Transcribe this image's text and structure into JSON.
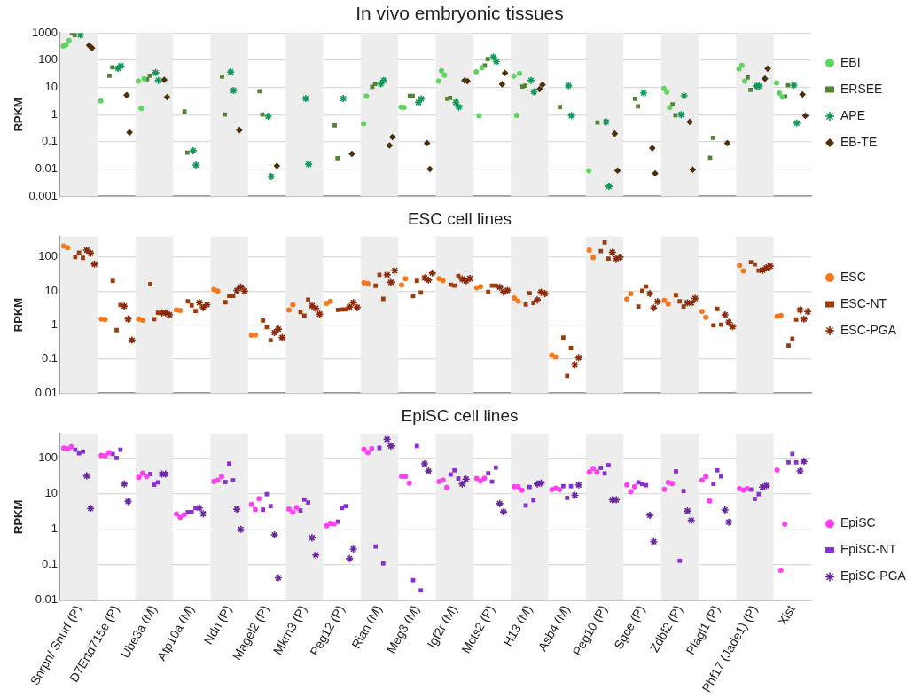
{
  "chart_data": [
    {
      "type": "scatter",
      "title": "In vivo embryonic tissues",
      "ylabel": "RPKM",
      "log": "y",
      "ylim": [
        0.001,
        1000
      ],
      "yticks": [
        0.001,
        0.01,
        0.1,
        1,
        10,
        100,
        1000
      ],
      "grid": "y",
      "legend": "right",
      "tick_labels": "y",
      "categories": [
        "Snrpn/ Snurf (P)",
        "D7Ertd715e (P)",
        "Ube3a (M)",
        "Atp10a (M)",
        "Ndn (P)",
        "Magel2 (P)",
        "Mkrn3 (P)",
        "Peg12 (P)",
        "Rian (M)",
        "Meg3 (M)",
        "Igf2r (M)",
        "Mcts2 (P)",
        "H13 (M)",
        "Asb4 (M)",
        "Peg10 (P)",
        "Sgce (P)",
        "Zdbf2 (P)",
        "Plagl1 (P)",
        "Phf17 (Jade1) (P)",
        "Xist"
      ],
      "bands": [
        {
          "axis": "x",
          "from": "Snrpn/ Snurf (P)",
          "to": "Snrpn/ Snurf (P)",
          "color": "#ededed"
        },
        {
          "axis": "x",
          "from": "Ube3a (M)",
          "to": "Ube3a (M)",
          "color": "#ededed"
        },
        {
          "axis": "x",
          "from": "Ndn (P)",
          "to": "Ndn (P)",
          "color": "#ededed"
        },
        {
          "axis": "x",
          "from": "Mkrn3 (P)",
          "to": "Mkrn3 (P)",
          "color": "#ededed"
        },
        {
          "axis": "x",
          "from": "Rian (M)",
          "to": "Rian (M)",
          "color": "#ededed"
        },
        {
          "axis": "x",
          "from": "Igf2r (M)",
          "to": "Igf2r (M)",
          "color": "#ededed"
        },
        {
          "axis": "x",
          "from": "H13 (M)",
          "to": "H13 (M)",
          "color": "#ededed"
        },
        {
          "axis": "x",
          "from": "Peg10 (P)",
          "to": "Peg10 (P)",
          "color": "#ededed"
        },
        {
          "axis": "x",
          "from": "Zdbf2 (P)",
          "to": "Zdbf2 (P)",
          "color": "#ededed"
        },
        {
          "axis": "x",
          "from": "Phf17 (Jade1) (P)",
          "to": "Phf17 (Jade1) (P)",
          "color": "#ededed"
        }
      ],
      "series": [
        {
          "name": "EBI",
          "color": "#5fd35f",
          "marker": "circle",
          "x": [
            "Snrpn/ Snurf (P)",
            "Snrpn/ Snurf (P)",
            "Snrpn/ Snurf (P)",
            "D7Ertd715e (P)",
            "Ube3a (M)",
            "Ube3a (M)",
            "Ube3a (M)",
            "Rian (M)",
            "Rian (M)",
            "Meg3 (M)",
            "Meg3 (M)",
            "Igf2r (M)",
            "Igf2r (M)",
            "Igf2r (M)",
            "Mcts2 (P)",
            "Mcts2 (P)",
            "Mcts2 (P)",
            "H13 (M)",
            "H13 (M)",
            "H13 (M)",
            "Peg10 (P)",
            "Zdbf2 (P)",
            "Zdbf2 (P)",
            "Zdbf2 (P)",
            "Phf17 (Jade1) (P)",
            "Phf17 (Jade1) (P)",
            "Phf17 (Jade1) (P)",
            "Xist",
            "Xist",
            "Xist"
          ],
          "values": [
            330,
            370,
            530,
            3.2,
            17,
            1.7,
            21,
            0.46,
            4.7,
            1.9,
            1.8,
            17,
            41,
            28,
            37,
            0.9,
            53,
            26,
            0.95,
            33,
            0.0086,
            9.2,
            6.7,
            1.8,
            48,
            64,
            17,
            14.5,
            6.2,
            4.4
          ]
        },
        {
          "name": "ERSEE",
          "color": "#548235",
          "marker": "square",
          "x": [
            "Snrpn/ Snurf (P)",
            "Snrpn/ Snurf (P)",
            "D7Ertd715e (P)",
            "D7Ertd715e (P)",
            "Ube3a (M)",
            "Ube3a (M)",
            "Atp10a (M)",
            "Atp10a (M)",
            "Ndn (P)",
            "Ndn (P)",
            "Magel2 (P)",
            "Magel2 (P)",
            "Peg12 (P)",
            "Peg12 (P)",
            "Rian (M)",
            "Rian (M)",
            "Meg3 (M)",
            "Meg3 (M)",
            "Igf2r (M)",
            "Igf2r (M)",
            "Mcts2 (P)",
            "Mcts2 (P)",
            "H13 (M)",
            "H13 (M)",
            "Asb4 (M)",
            "Peg10 (P)",
            "Sgce (P)",
            "Sgce (P)",
            "Zdbf2 (P)",
            "Zdbf2 (P)",
            "Plagl1 (P)",
            "Plagl1 (P)",
            "Phf17 (Jade1) (P)",
            "Phf17 (Jade1) (P)",
            "Xist",
            "Xist"
          ],
          "values": [
            1000,
            830,
            27,
            55,
            20,
            27,
            1.3,
            0.04,
            25,
            1.0,
            7.2,
            1.0,
            0.4,
            0.025,
            10.5,
            13.5,
            4.9,
            4.9,
            3.8,
            4.1,
            64,
            110,
            10.7,
            11.5,
            1.9,
            0.51,
            3.8,
            2.0,
            2.4,
            0.95,
            0.026,
            0.14,
            23,
            8.1,
            4.6,
            12
          ]
        },
        {
          "name": "APE",
          "color": "#109a5a",
          "marker": "cross",
          "x": [
            "Snrpn/ Snurf (P)",
            "D7Ertd715e (P)",
            "D7Ertd715e (P)",
            "Ube3a (M)",
            "Ube3a (M)",
            "Atp10a (M)",
            "Atp10a (M)",
            "Ndn (P)",
            "Ndn (P)",
            "Magel2 (P)",
            "Magel2 (P)",
            "Mkrn3 (P)",
            "Mkrn3 (P)",
            "Peg12 (P)",
            "Rian (M)",
            "Rian (M)",
            "Meg3 (M)",
            "Meg3 (M)",
            "Igf2r (M)",
            "Igf2r (M)",
            "Mcts2 (P)",
            "Mcts2 (P)",
            "H13 (M)",
            "H13 (M)",
            "Asb4 (M)",
            "Asb4 (M)",
            "Peg10 (P)",
            "Peg10 (P)",
            "Sgce (P)",
            "Zdbf2 (P)",
            "Zdbf2 (P)",
            "Phf17 (Jade1) (P)",
            "Phf17 (Jade1) (P)",
            "Xist",
            "Xist"
          ],
          "values": [
            850,
            50,
            62,
            35,
            18,
            0.047,
            0.014,
            37,
            7.7,
            0.87,
            0.0053,
            3.9,
            0.015,
            3.9,
            13.5,
            18,
            2.8,
            3.8,
            2.8,
            1.9,
            130,
            88,
            18,
            6.9,
            11.5,
            0.93,
            0.54,
            0.0023,
            6.3,
            1.0,
            4.9,
            11.2,
            11.2,
            12,
            0.49
          ]
        },
        {
          "name": "EB-TE",
          "color": "#4d2e0b",
          "marker": "diamond",
          "x": [
            "Snrpn/ Snurf (P)",
            "Snrpn/ Snurf (P)",
            "D7Ertd715e (P)",
            "D7Ertd715e (P)",
            "Ube3a (M)",
            "Ube3a (M)",
            "Ndn (P)",
            "Magel2 (P)",
            "Peg12 (P)",
            "Rian (M)",
            "Rian (M)",
            "Meg3 (M)",
            "Meg3 (M)",
            "Igf2r (M)",
            "Igf2r (M)",
            "Mcts2 (P)",
            "Mcts2 (P)",
            "H13 (M)",
            "H13 (M)",
            "Peg10 (P)",
            "Peg10 (P)",
            "Sgce (P)",
            "Sgce (P)",
            "Zdbf2 (P)",
            "Zdbf2 (P)",
            "Plagl1 (P)",
            "Phf17 (Jade1) (P)",
            "Phf17 (Jade1) (P)",
            "Xist",
            "Xist"
          ],
          "values": [
            350,
            280,
            5.2,
            0.22,
            19,
            4.4,
            0.27,
            0.013,
            0.036,
            0.073,
            0.15,
            0.089,
            0.01,
            18,
            17,
            13,
            34,
            8.7,
            12.5,
            0.2,
            0.0088,
            0.058,
            0.0069,
            0.54,
            0.0095,
            0.089,
            21,
            49,
            5.5,
            0.91
          ]
        }
      ]
    },
    {
      "type": "scatter",
      "title": "ESC cell lines",
      "ylabel": "RPKM",
      "log": "y",
      "ylim": [
        0.01,
        400
      ],
      "yticks": [
        0.01,
        0.1,
        1,
        10,
        100
      ],
      "grid": "y",
      "legend": "right",
      "tick_labels": "y",
      "categories": [
        "Snrpn/ Snurf (P)",
        "D7Ertd715e (P)",
        "Ube3a (M)",
        "Atp10a (M)",
        "Ndn (P)",
        "Magel2 (P)",
        "Mkrn3 (P)",
        "Peg12 (P)",
        "Rian (M)",
        "Meg3 (M)",
        "Igf2r (M)",
        "Mcts2 (P)",
        "H13 (M)",
        "Asb4 (M)",
        "Peg10 (P)",
        "Sgce (P)",
        "Zdbf2 (P)",
        "Plagl1 (P)",
        "Phf17 (Jade1) (P)",
        "Xist"
      ],
      "bands": [
        {
          "axis": "x",
          "from": "Snrpn/ Snurf (P)",
          "to": "Snrpn/ Snurf (P)",
          "color": "#ededed"
        },
        {
          "axis": "x",
          "from": "Ube3a (M)",
          "to": "Ube3a (M)",
          "color": "#ededed"
        },
        {
          "axis": "x",
          "from": "Ndn (P)",
          "to": "Ndn (P)",
          "color": "#ededed"
        },
        {
          "axis": "x",
          "from": "Mkrn3 (P)",
          "to": "Mkrn3 (P)",
          "color": "#ededed"
        },
        {
          "axis": "x",
          "from": "Rian (M)",
          "to": "Rian (M)",
          "color": "#ededed"
        },
        {
          "axis": "x",
          "from": "Igf2r (M)",
          "to": "Igf2r (M)",
          "color": "#ededed"
        },
        {
          "axis": "x",
          "from": "H13 (M)",
          "to": "H13 (M)",
          "color": "#ededed"
        },
        {
          "axis": "x",
          "from": "Peg10 (P)",
          "to": "Peg10 (P)",
          "color": "#ededed"
        },
        {
          "axis": "x",
          "from": "Zdbf2 (P)",
          "to": "Zdbf2 (P)",
          "color": "#ededed"
        },
        {
          "axis": "x",
          "from": "Phf17 (Jade1) (P)",
          "to": "Phf17 (Jade1) (P)",
          "color": "#ededed"
        }
      ],
      "series": [
        {
          "name": "ESC",
          "color": "#f6781c",
          "marker": "circle",
          "x": [
            "Snrpn/ Snurf (P)",
            "Snrpn/ Snurf (P)",
            "D7Ertd715e (P)",
            "D7Ertd715e (P)",
            "Ube3a (M)",
            "Ube3a (M)",
            "Atp10a (M)",
            "Atp10a (M)",
            "Ndn (P)",
            "Ndn (P)",
            "Magel2 (P)",
            "Magel2 (P)",
            "Mkrn3 (P)",
            "Mkrn3 (P)",
            "Peg12 (P)",
            "Peg12 (P)",
            "Rian (M)",
            "Rian (M)",
            "Meg3 (M)",
            "Meg3 (M)",
            "Igf2r (M)",
            "Igf2r (M)",
            "Mcts2 (P)",
            "Mcts2 (P)",
            "H13 (M)",
            "H13 (M)",
            "Asb4 (M)",
            "Asb4 (M)",
            "Peg10 (P)",
            "Peg10 (P)",
            "Sgce (P)",
            "Sgce (P)",
            "Zdbf2 (P)",
            "Zdbf2 (P)",
            "Plagl1 (P)",
            "Plagl1 (P)",
            "Phf17 (Jade1) (P)",
            "Phf17 (Jade1) (P)",
            "Xist",
            "Xist"
          ],
          "values": [
            210,
            190,
            1.5,
            1.45,
            1.5,
            1.4,
            2.8,
            2.7,
            11,
            10,
            0.5,
            0.51,
            2.8,
            4.0,
            4.4,
            5.0,
            17.5,
            16.7,
            15,
            23,
            23,
            20.6,
            12.5,
            13.5,
            6.3,
            5.1,
            0.13,
            0.115,
            160,
            96,
            5.8,
            8.3,
            5.3,
            4.2,
            2.5,
            1.7,
            57,
            39,
            1.8,
            1.9
          ]
        },
        {
          "name": "ESC-NT",
          "color": "#9c3c0c",
          "marker": "square",
          "x": [
            "Snrpn/ Snurf (P)",
            "Snrpn/ Snurf (P)",
            "Snrpn/ Snurf (P)",
            "D7Ertd715e (P)",
            "D7Ertd715e (P)",
            "D7Ertd715e (P)",
            "Ube3a (M)",
            "Ube3a (M)",
            "Ube3a (M)",
            "Atp10a (M)",
            "Atp10a (M)",
            "Atp10a (M)",
            "Ndn (P)",
            "Ndn (P)",
            "Ndn (P)",
            "Magel2 (P)",
            "Magel2 (P)",
            "Magel2 (P)",
            "Mkrn3 (P)",
            "Mkrn3 (P)",
            "Mkrn3 (P)",
            "Peg12 (P)",
            "Peg12 (P)",
            "Peg12 (P)",
            "Rian (M)",
            "Rian (M)",
            "Rian (M)",
            "Meg3 (M)",
            "Meg3 (M)",
            "Meg3 (M)",
            "Igf2r (M)",
            "Igf2r (M)",
            "Igf2r (M)",
            "Mcts2 (P)",
            "Mcts2 (P)",
            "Mcts2 (P)",
            "H13 (M)",
            "H13 (M)",
            "H13 (M)",
            "Asb4 (M)",
            "Asb4 (M)",
            "Asb4 (M)",
            "Peg10 (P)",
            "Peg10 (P)",
            "Peg10 (P)",
            "Sgce (P)",
            "Sgce (P)",
            "Sgce (P)",
            "Zdbf2 (P)",
            "Zdbf2 (P)",
            "Zdbf2 (P)",
            "Plagl1 (P)",
            "Plagl1 (P)",
            "Plagl1 (P)",
            "Phf17 (Jade1) (P)",
            "Phf17 (Jade1) (P)",
            "Phf17 (Jade1) (P)",
            "Xist",
            "Xist",
            "Xist"
          ],
          "values": [
            100,
            134,
            95,
            20,
            0.71,
            3.9,
            16,
            1.5,
            2.3,
            5.0,
            3.8,
            2.6,
            4.7,
            7.2,
            7.2,
            1.37,
            0.87,
            0.36,
            2.4,
            1.9,
            5.6,
            2.8,
            2.9,
            2.9,
            14.3,
            30,
            5.9,
            7.1,
            20,
            9,
            15.3,
            14.4,
            28,
            9.5,
            14.4,
            14.4,
            4.0,
            8.6,
            4.5,
            0.43,
            0.032,
            0.21,
            150,
            270,
            90,
            3.5,
            10.2,
            13.6,
            7.6,
            5.0,
            3.5,
            0.98,
            3.0,
            1.03,
            71,
            61,
            40,
            0.25,
            0.4,
            1.46
          ]
        },
        {
          "name": "ESC-PGA",
          "color": "#8b2a0a",
          "marker": "cross",
          "x": [
            "Snrpn/ Snurf (P)",
            "Snrpn/ Snurf (P)",
            "Snrpn/ Snurf (P)",
            "D7Ertd715e (P)",
            "D7Ertd715e (P)",
            "D7Ertd715e (P)",
            "Ube3a (M)",
            "Ube3a (M)",
            "Ube3a (M)",
            "Atp10a (M)",
            "Atp10a (M)",
            "Atp10a (M)",
            "Ndn (P)",
            "Ndn (P)",
            "Ndn (P)",
            "Magel2 (P)",
            "Magel2 (P)",
            "Magel2 (P)",
            "Mkrn3 (P)",
            "Mkrn3 (P)",
            "Mkrn3 (P)",
            "Peg12 (P)",
            "Peg12 (P)",
            "Peg12 (P)",
            "Rian (M)",
            "Rian (M)",
            "Rian (M)",
            "Meg3 (M)",
            "Meg3 (M)",
            "Meg3 (M)",
            "Igf2r (M)",
            "Igf2r (M)",
            "Igf2r (M)",
            "Mcts2 (P)",
            "Mcts2 (P)",
            "Mcts2 (P)",
            "H13 (M)",
            "H13 (M)",
            "H13 (M)",
            "Asb4 (M)",
            "Asb4 (M)",
            "Peg10 (P)",
            "Peg10 (P)",
            "Peg10 (P)",
            "Sgce (P)",
            "Sgce (P)",
            "Sgce (P)",
            "Zdbf2 (P)",
            "Zdbf2 (P)",
            "Zdbf2 (P)",
            "Plagl1 (P)",
            "Plagl1 (P)",
            "Plagl1 (P)",
            "Phf17 (Jade1) (P)",
            "Phf17 (Jade1) (P)",
            "Phf17 (Jade1) (P)",
            "Xist",
            "Xist",
            "Xist"
          ],
          "values": [
            160,
            130,
            62,
            3.6,
            1.5,
            0.36,
            2.3,
            2.3,
            2.0,
            4.6,
            3.3,
            4.0,
            10.4,
            13,
            10,
            0.6,
            0.76,
            0.43,
            3.7,
            3.1,
            2.1,
            3.4,
            4.6,
            3.3,
            30,
            18,
            40,
            24.5,
            21,
            34,
            22.6,
            20,
            23.5,
            13,
            9.3,
            10.5,
            5.5,
            9.3,
            8.4,
            0.068,
            0.11,
            138,
            90,
            100,
            8.4,
            3.2,
            4.9,
            4.5,
            4.5,
            6.1,
            2.0,
            1.2,
            0.9,
            41,
            48,
            54,
            2.8,
            1.5,
            2.5
          ]
        }
      ]
    },
    {
      "type": "scatter",
      "title": "EpiSC cell lines",
      "ylabel": "RPKM",
      "log": "y",
      "ylim": [
        0.01,
        500
      ],
      "yticks": [
        0.01,
        0.1,
        1,
        10,
        100
      ],
      "grid": "y",
      "legend": "right",
      "categories": [
        "Snrpn/ Snurf (P)",
        "D7Ertd715e (P)",
        "Ube3a (M)",
        "Atp10a (M)",
        "Ndn (P)",
        "Magel2 (P)",
        "Mkrn3 (P)",
        "Peg12 (P)",
        "Rian (M)",
        "Meg3 (M)",
        "Igf2r (M)",
        "Mcts2 (P)",
        "H13 (M)",
        "Asb4 (M)",
        "Peg10 (P)",
        "Sgce (P)",
        "Zdbf2 (P)",
        "Plagl1 (P)",
        "Phf17 (Jade1) (P)",
        "Xist"
      ],
      "bands": [
        {
          "axis": "x",
          "from": "Snrpn/ Snurf (P)",
          "to": "Snrpn/ Snurf (P)",
          "color": "#ededed"
        },
        {
          "axis": "x",
          "from": "Ube3a (M)",
          "to": "Ube3a (M)",
          "color": "#ededed"
        },
        {
          "axis": "x",
          "from": "Ndn (P)",
          "to": "Ndn (P)",
          "color": "#ededed"
        },
        {
          "axis": "x",
          "from": "Mkrn3 (P)",
          "to": "Mkrn3 (P)",
          "color": "#ededed"
        },
        {
          "axis": "x",
          "from": "Rian (M)",
          "to": "Rian (M)",
          "color": "#ededed"
        },
        {
          "axis": "x",
          "from": "Igf2r (M)",
          "to": "Igf2r (M)",
          "color": "#ededed"
        },
        {
          "axis": "x",
          "from": "H13 (M)",
          "to": "H13 (M)",
          "color": "#ededed"
        },
        {
          "axis": "x",
          "from": "Peg10 (P)",
          "to": "Peg10 (P)",
          "color": "#ededed"
        },
        {
          "axis": "x",
          "from": "Zdbf2 (P)",
          "to": "Zdbf2 (P)",
          "color": "#ededed"
        },
        {
          "axis": "x",
          "from": "Phf17 (Jade1) (P)",
          "to": "Phf17 (Jade1) (P)",
          "color": "#ededed"
        }
      ],
      "series": [
        {
          "name": "EpiSC",
          "color": "#ff40f0",
          "marker": "circle",
          "x": [
            "Snrpn/ Snurf (P)",
            "Snrpn/ Snurf (P)",
            "Snrpn/ Snurf (P)",
            "D7Ertd715e (P)",
            "D7Ertd715e (P)",
            "D7Ertd715e (P)",
            "Ube3a (M)",
            "Ube3a (M)",
            "Ube3a (M)",
            "Atp10a (M)",
            "Atp10a (M)",
            "Atp10a (M)",
            "Ndn (P)",
            "Ndn (P)",
            "Ndn (P)",
            "Magel2 (P)",
            "Magel2 (P)",
            "Magel2 (P)",
            "Mkrn3 (P)",
            "Mkrn3 (P)",
            "Mkrn3 (P)",
            "Peg12 (P)",
            "Peg12 (P)",
            "Peg12 (P)",
            "Rian (M)",
            "Rian (M)",
            "Rian (M)",
            "Meg3 (M)",
            "Meg3 (M)",
            "Meg3 (M)",
            "Igf2r (M)",
            "Igf2r (M)",
            "Igf2r (M)",
            "Mcts2 (P)",
            "Mcts2 (P)",
            "Mcts2 (P)",
            "H13 (M)",
            "H13 (M)",
            "H13 (M)",
            "Asb4 (M)",
            "Asb4 (M)",
            "Asb4 (M)",
            "Peg10 (P)",
            "Peg10 (P)",
            "Peg10 (P)",
            "Sgce (P)",
            "Sgce (P)",
            "Sgce (P)",
            "Zdbf2 (P)",
            "Zdbf2 (P)",
            "Zdbf2 (P)",
            "Plagl1 (P)",
            "Plagl1 (P)",
            "Plagl1 (P)",
            "Phf17 (Jade1) (P)",
            "Phf17 (Jade1) (P)",
            "Phf17 (Jade1) (P)",
            "Xist",
            "Xist",
            "Xist"
          ],
          "values": [
            193,
            186,
            213,
            120,
            117,
            143,
            29,
            38.5,
            31,
            2.7,
            2.2,
            2.6,
            22,
            24,
            31,
            5.0,
            3.6,
            7.3,
            3.7,
            3.05,
            4.1,
            1.26,
            1.48,
            1.45,
            178,
            146,
            189,
            31,
            31,
            20,
            22,
            24,
            15,
            27,
            23,
            27.5,
            16,
            16,
            12.7,
            13.2,
            14.3,
            13.2,
            41,
            52,
            41,
            17.8,
            11.6,
            16,
            13.4,
            21,
            19.5,
            24,
            31,
            6.3,
            14,
            12.8,
            14,
            47,
            0.07,
            1.4
          ]
        },
        {
          "name": "EpiSC-NT",
          "color": "#8a2ed6",
          "marker": "square",
          "x": [
            "Snrpn/ Snurf (P)",
            "Snrpn/ Snurf (P)",
            "Snrpn/ Snurf (P)",
            "D7Ertd715e (P)",
            "D7Ertd715e (P)",
            "D7Ertd715e (P)",
            "Ube3a (M)",
            "Ube3a (M)",
            "Ube3a (M)",
            "Atp10a (M)",
            "Atp10a (M)",
            "Atp10a (M)",
            "Ndn (P)",
            "Ndn (P)",
            "Ndn (P)",
            "Magel2 (P)",
            "Magel2 (P)",
            "Magel2 (P)",
            "Mkrn3 (P)",
            "Mkrn3 (P)",
            "Mkrn3 (P)",
            "Peg12 (P)",
            "Peg12 (P)",
            "Peg12 (P)",
            "Rian (M)",
            "Rian (M)",
            "Rian (M)",
            "Meg3 (M)",
            "Meg3 (M)",
            "Meg3 (M)",
            "Igf2r (M)",
            "Igf2r (M)",
            "Igf2r (M)",
            "Mcts2 (P)",
            "Mcts2 (P)",
            "Mcts2 (P)",
            "H13 (M)",
            "H13 (M)",
            "H13 (M)",
            "Asb4 (M)",
            "Asb4 (M)",
            "Asb4 (M)",
            "Peg10 (P)",
            "Peg10 (P)",
            "Peg10 (P)",
            "Sgce (P)",
            "Sgce (P)",
            "Sgce (P)",
            "Zdbf2 (P)",
            "Zdbf2 (P)",
            "Zdbf2 (P)",
            "Plagl1 (P)",
            "Plagl1 (P)",
            "Plagl1 (P)",
            "Phf17 (Jade1) (P)",
            "Phf17 (Jade1) (P)",
            "Phf17 (Jade1) (P)",
            "Xist",
            "Xist",
            "Xist"
          ],
          "values": [
            175,
            138,
            155,
            132,
            102,
            175,
            36,
            18,
            21,
            3.05,
            3.05,
            4.0,
            21.5,
            71,
            24,
            3.6,
            9.8,
            4.5,
            3.4,
            6.9,
            5.7,
            1.65,
            4.0,
            4.5,
            0.33,
            197,
            0.11,
            0.037,
            222,
            0.019,
            35,
            46,
            27,
            38,
            22,
            55,
            4.7,
            15.5,
            6.6,
            16.4,
            7.7,
            16.4,
            54,
            37.5,
            64,
            21,
            19,
            17.5,
            43,
            0.13,
            12,
            19,
            46,
            31,
            13.2,
            7.2,
            9.8,
            77,
            133,
            77
          ]
        },
        {
          "name": "EpiSC-PGA",
          "color": "#6a2a9c",
          "marker": "cross",
          "x": [
            "Snrpn/ Snurf (P)",
            "Snrpn/ Snurf (P)",
            "D7Ertd715e (P)",
            "D7Ertd715e (P)",
            "Ube3a (M)",
            "Ube3a (M)",
            "Atp10a (M)",
            "Atp10a (M)",
            "Ndn (P)",
            "Ndn (P)",
            "Magel2 (P)",
            "Magel2 (P)",
            "Mkrn3 (P)",
            "Mkrn3 (P)",
            "Peg12 (P)",
            "Peg12 (P)",
            "Rian (M)",
            "Rian (M)",
            "Meg3 (M)",
            "Meg3 (M)",
            "Igf2r (M)",
            "Igf2r (M)",
            "Mcts2 (P)",
            "Mcts2 (P)",
            "H13 (M)",
            "H13 (M)",
            "Asb4 (M)",
            "Asb4 (M)",
            "Peg10 (P)",
            "Peg10 (P)",
            "Sgce (P)",
            "Sgce (P)",
            "Zdbf2 (P)",
            "Zdbf2 (P)",
            "Plagl1 (P)",
            "Plagl1 (P)",
            "Phf17 (Jade1) (P)",
            "Phf17 (Jade1) (P)",
            "Xist",
            "Xist"
          ],
          "values": [
            32,
            3.9,
            19,
            6.1,
            36,
            36,
            4.0,
            2.75,
            3.7,
            1.0,
            0.7,
            0.043,
            0.58,
            0.19,
            0.15,
            0.28,
            345,
            222,
            70,
            44,
            19,
            26,
            5.3,
            3.1,
            19,
            20,
            9.1,
            17.8,
            6.8,
            6.8,
            2.5,
            0.45,
            3.3,
            1.8,
            3.5,
            1.6,
            15.5,
            17,
            44,
            82
          ]
        }
      ]
    }
  ]
}
